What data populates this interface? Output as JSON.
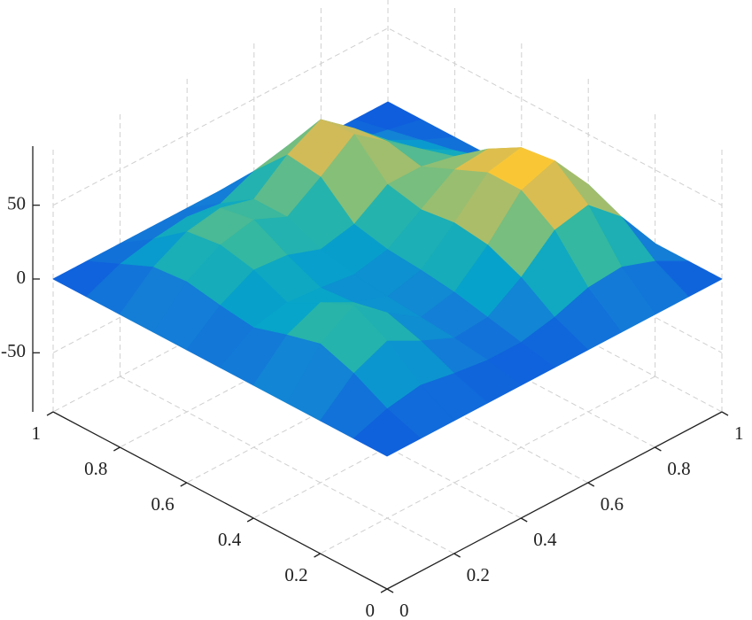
{
  "chart_data": {
    "type": "surface3d",
    "x": [
      0,
      0.1,
      0.2,
      0.3,
      0.4,
      0.5,
      0.6,
      0.7,
      0.8,
      0.9,
      1
    ],
    "y": [
      0,
      0.1,
      0.2,
      0.3,
      0.4,
      0.5,
      0.6,
      0.7,
      0.8,
      0.9,
      1
    ],
    "z": [
      [
        0,
        0,
        0,
        0,
        0,
        0,
        0,
        0,
        0,
        0,
        0
      ],
      [
        0,
        8,
        12,
        8,
        5,
        5,
        10,
        18,
        20,
        12,
        0
      ],
      [
        0,
        20,
        30,
        18,
        8,
        10,
        25,
        45,
        50,
        30,
        0
      ],
      [
        0,
        28,
        42,
        25,
        10,
        15,
        35,
        60,
        68,
        40,
        0
      ],
      [
        0,
        22,
        32,
        20,
        12,
        18,
        38,
        60,
        65,
        42,
        0
      ],
      [
        0,
        15,
        20,
        18,
        15,
        20,
        35,
        50,
        52,
        35,
        0
      ],
      [
        0,
        18,
        30,
        28,
        20,
        25,
        40,
        40,
        35,
        22,
        0
      ],
      [
        0,
        22,
        35,
        40,
        30,
        45,
        62,
        45,
        28,
        15,
        0
      ],
      [
        0,
        20,
        32,
        36,
        30,
        48,
        60,
        42,
        22,
        10,
        0
      ],
      [
        0,
        10,
        15,
        18,
        15,
        25,
        30,
        20,
        10,
        5,
        0
      ],
      [
        0,
        0,
        0,
        0,
        0,
        0,
        0,
        0,
        0,
        0,
        0
      ]
    ],
    "xlim": [
      0,
      1
    ],
    "ylim": [
      0,
      1
    ],
    "zlim": [
      -90,
      90
    ],
    "xticks": [
      0,
      0.2,
      0.4,
      0.6,
      0.8,
      1
    ],
    "yticks": [
      0,
      0.2,
      0.4,
      0.6,
      0.8,
      1
    ],
    "zticks": [
      -50,
      0,
      50
    ],
    "grid": true,
    "colormap": [
      "#352a87",
      "#0f5cdd",
      "#1481d6",
      "#06a4ca",
      "#2eb7a4",
      "#87bf77",
      "#d1bb59",
      "#fec832",
      "#f9fb0e"
    ],
    "clim": [
      -10,
      75
    ]
  }
}
